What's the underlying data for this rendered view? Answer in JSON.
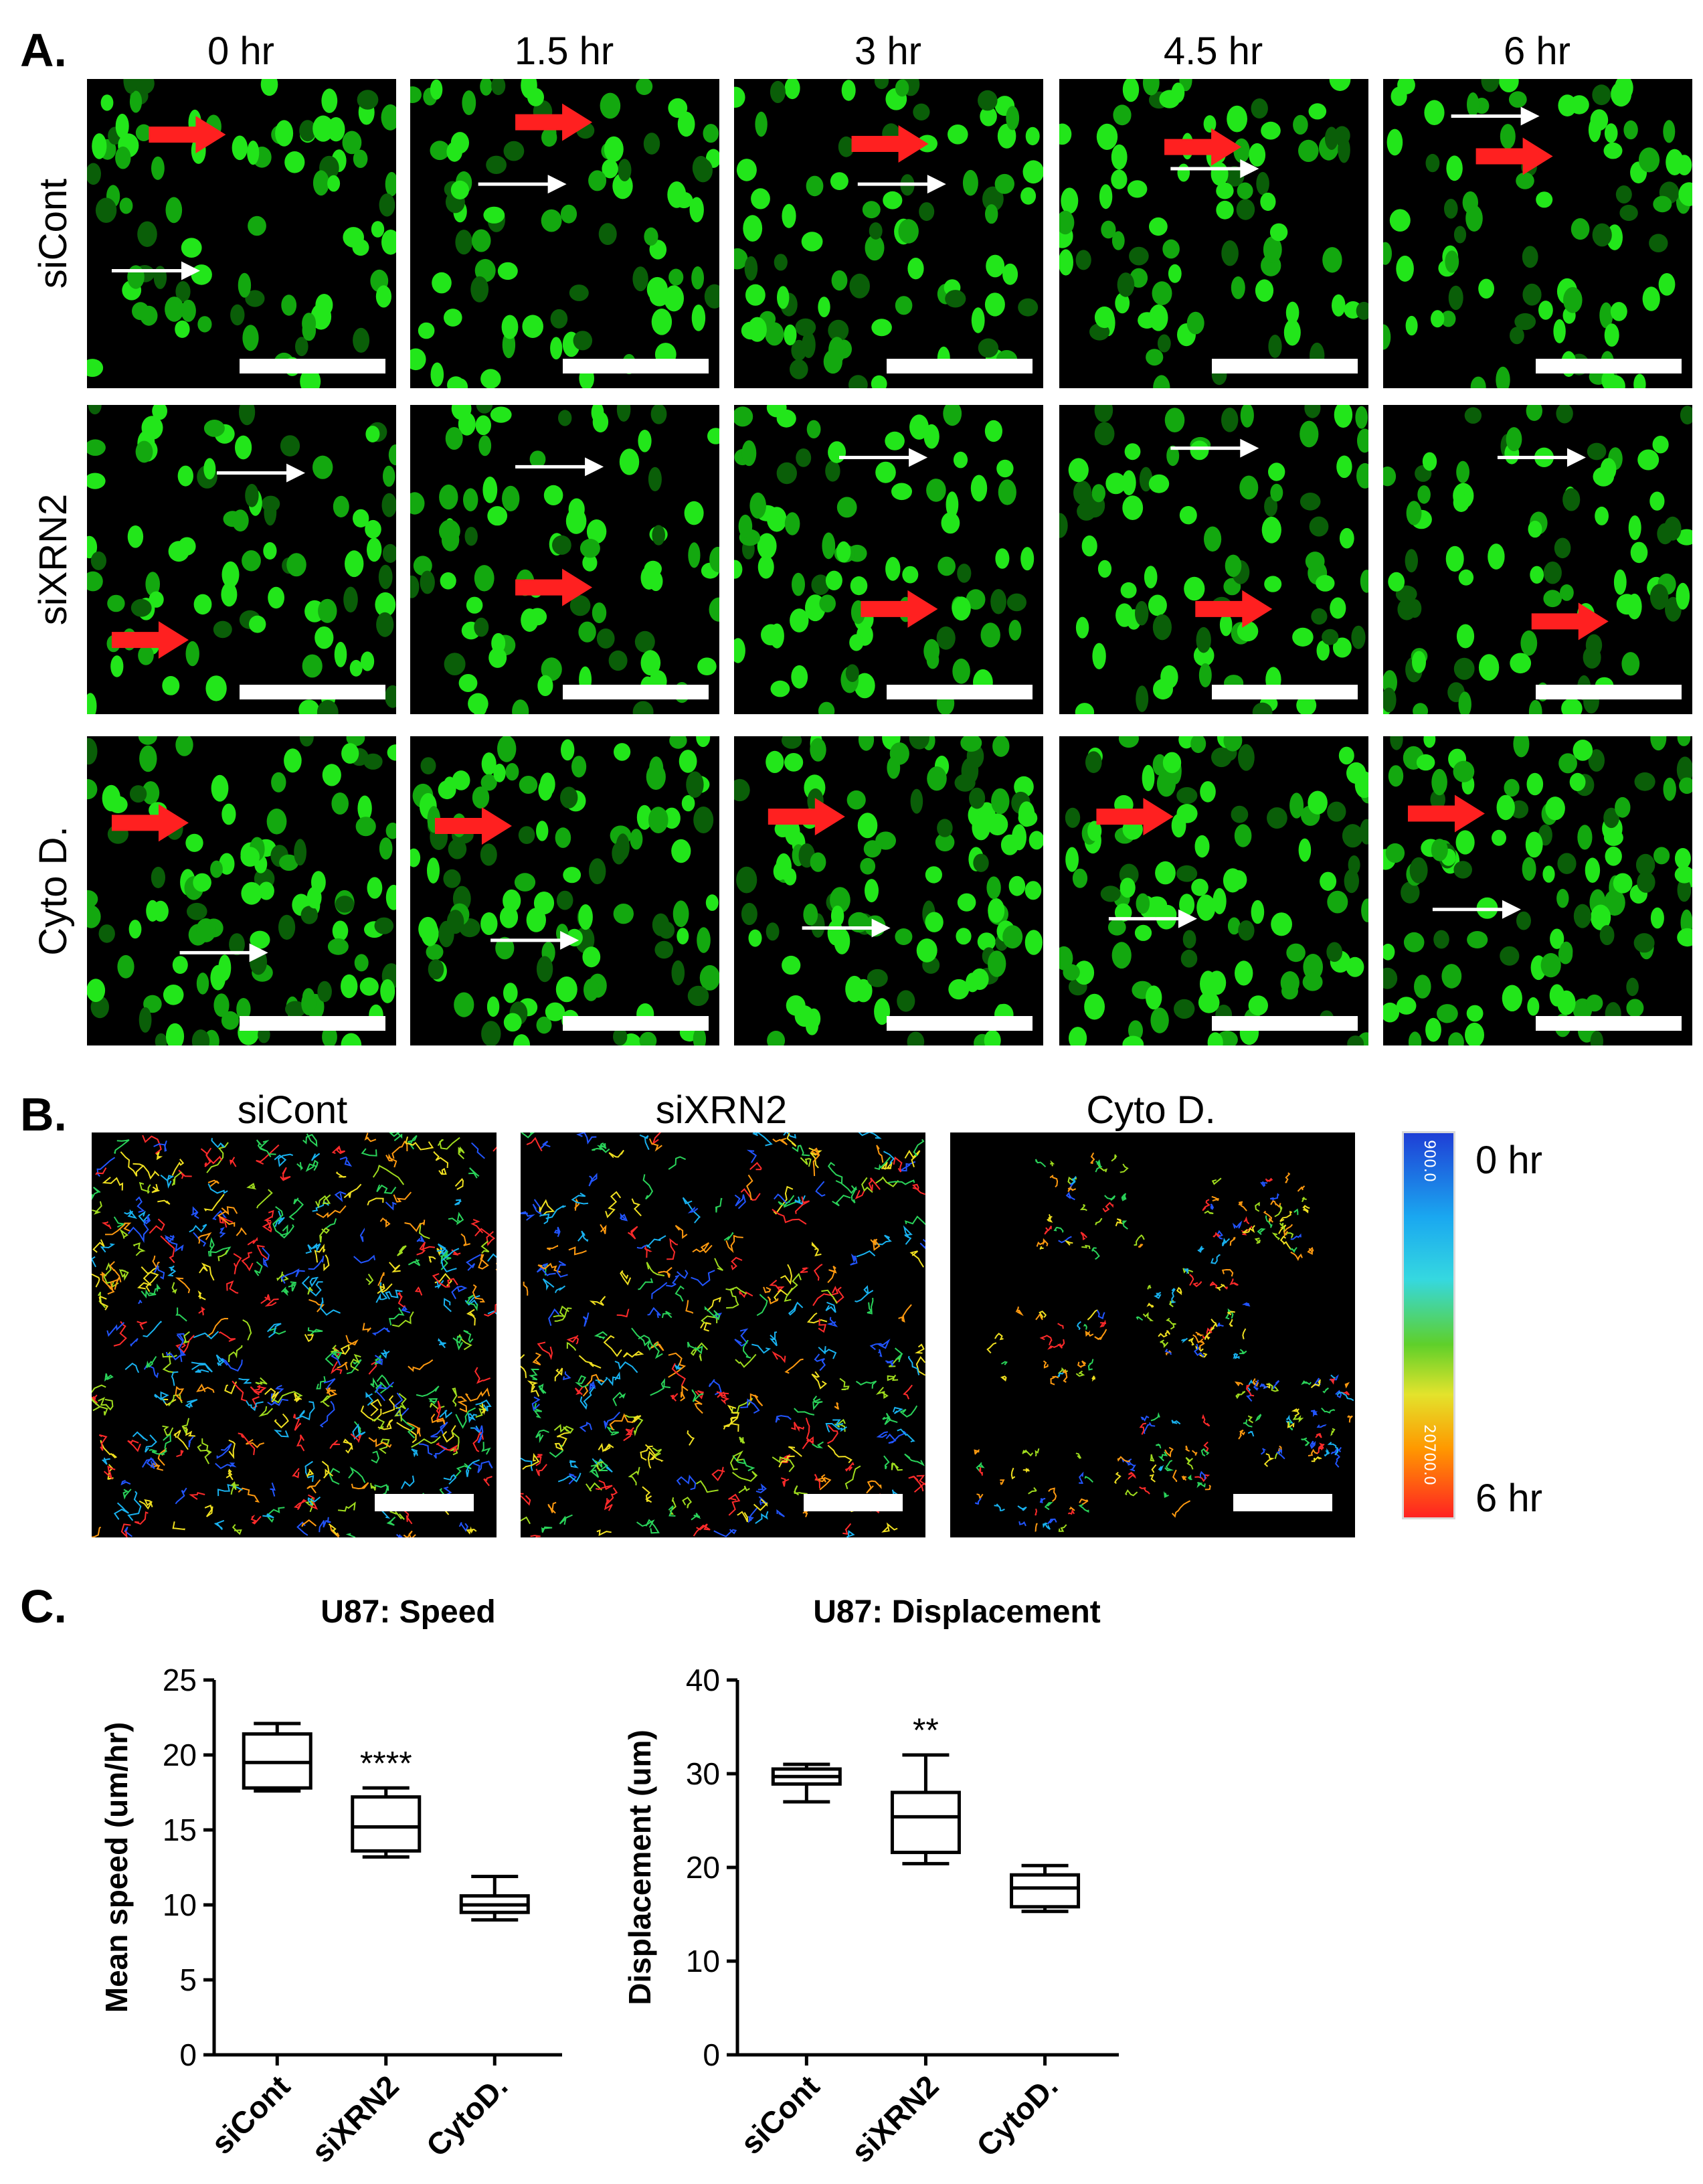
{
  "panel_a": {
    "letter": "A.",
    "time_labels": [
      "0 hr",
      "1.5 hr",
      "3 hr",
      "4.5 hr",
      "6 hr"
    ],
    "row_labels": [
      "siCont",
      "siXRN2",
      "Cyto D."
    ]
  },
  "panel_b": {
    "letter": "B.",
    "labels": [
      "siCont",
      "siXRN2",
      "Cyto D."
    ],
    "colorbar": {
      "top_tick": "900.0",
      "bottom_tick": "20700.0",
      "top_label": "0 hr",
      "bottom_label": "6 hr"
    }
  },
  "panel_c": {
    "letter": "C."
  },
  "chart_data": [
    {
      "type": "box",
      "title": "U87: Speed",
      "ylabel": "Mean speed (um/hr)",
      "xlabel": "",
      "ylim": [
        0,
        25
      ],
      "yticks": [
        "0",
        "5",
        "10",
        "15",
        "20",
        "25"
      ],
      "categories": [
        "siCont",
        "siXRN2",
        "CytoD."
      ],
      "boxes": [
        {
          "min": 17.6,
          "q1": 17.8,
          "median": 19.5,
          "q3": 21.4,
          "max": 22.1,
          "annotation": ""
        },
        {
          "min": 13.2,
          "q1": 13.6,
          "median": 15.2,
          "q3": 17.2,
          "max": 17.8,
          "annotation": "****"
        },
        {
          "min": 9.0,
          "q1": 9.5,
          "median": 10.0,
          "q3": 10.6,
          "max": 11.9,
          "annotation": ""
        }
      ]
    },
    {
      "type": "box",
      "title": "U87: Displacement",
      "ylabel": "Displacement (um)",
      "xlabel": "",
      "ylim": [
        0,
        40
      ],
      "yticks": [
        "0",
        "10",
        "20",
        "30",
        "40"
      ],
      "categories": [
        "siCont",
        "siXRN2",
        "CytoD."
      ],
      "boxes": [
        {
          "min": 27.0,
          "q1": 28.9,
          "median": 29.7,
          "q3": 30.5,
          "max": 31.0,
          "annotation": ""
        },
        {
          "min": 20.4,
          "q1": 21.6,
          "median": 25.4,
          "q3": 28.0,
          "max": 32.0,
          "annotation": "**"
        },
        {
          "min": 15.3,
          "q1": 15.8,
          "median": 17.8,
          "q3": 19.2,
          "max": 20.2,
          "annotation": ""
        }
      ]
    }
  ]
}
